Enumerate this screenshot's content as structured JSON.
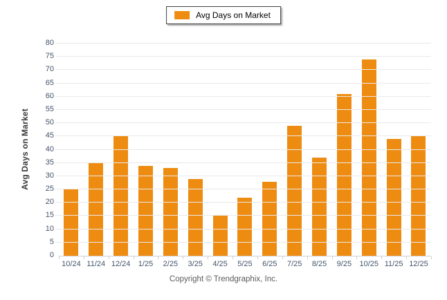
{
  "legend": {
    "label": "Avg Days on Market",
    "swatch_color": "#ee8c12",
    "swatch_icon": "orange-square-swatch"
  },
  "footer": {
    "copyright": "Copyright © Trendgraphix, Inc."
  },
  "chart_data": {
    "type": "bar",
    "title": "",
    "categories": [
      "10/24",
      "11/24",
      "12/24",
      "1/25",
      "2/25",
      "3/25",
      "4/25",
      "5/25",
      "6/25",
      "7/25",
      "8/25",
      "9/25",
      "10/25",
      "11/25",
      "12/25"
    ],
    "series": [
      {
        "name": "Avg Days on Market",
        "values": [
          25,
          35,
          45,
          34,
          33,
          29,
          15,
          22,
          28,
          49,
          37,
          61,
          74,
          44,
          45
        ],
        "color": "#ee8c12"
      }
    ],
    "xlabel": "",
    "ylabel": "Avg Days on Market",
    "ylim": [
      0,
      80
    ],
    "ytick_step": 5,
    "grid": true,
    "gridline_color": "#e9e9e9",
    "axis_line_color": "#cfcfcf",
    "tick_label_color": "#44546a",
    "legend_position": "top-center",
    "background_color": "#ffffff"
  }
}
